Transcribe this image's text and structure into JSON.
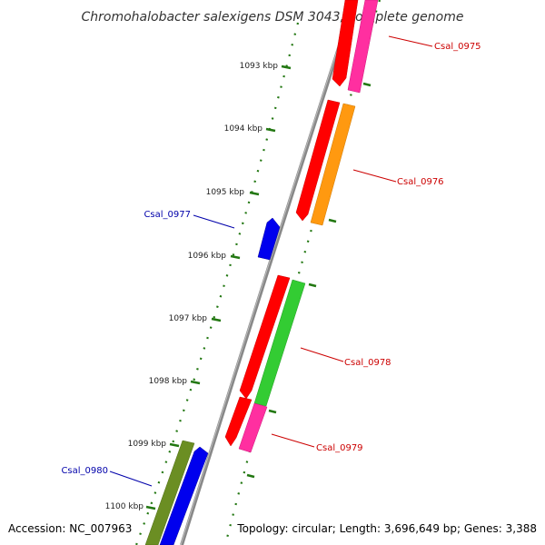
{
  "title": "Chromohalobacter salexigens DSM 3043, complete genome",
  "footer": {
    "accession": "Accession: NC_007963",
    "summary": "Topology: circular; Length: 3,696,649 bp; Genes: 3,388"
  },
  "ticks": [
    "1093 kbp",
    "1094 kbp",
    "1095 kbp",
    "1096 kbp",
    "1097 kbp",
    "1098 kbp",
    "1099 kbp",
    "1100 kbp"
  ],
  "gene_labels": [
    {
      "name": "Csal_0975",
      "color": "#cc0000"
    },
    {
      "name": "Csal_0976",
      "color": "#cc0000"
    },
    {
      "name": "Csal_0977",
      "color": "#0000aa"
    },
    {
      "name": "Csal_0978",
      "color": "#cc0000"
    },
    {
      "name": "Csal_0979",
      "color": "#cc0000"
    },
    {
      "name": "Csal_0980",
      "color": "#0000aa"
    }
  ],
  "colors": {
    "backbone": "#888888",
    "gc_ticks": "#227711",
    "red": "#ff0000",
    "magenta": "#ff2fa0",
    "orange": "#ff9910",
    "green": "#33cc33",
    "blue": "#0000ee",
    "olive": "#6b8e23"
  }
}
